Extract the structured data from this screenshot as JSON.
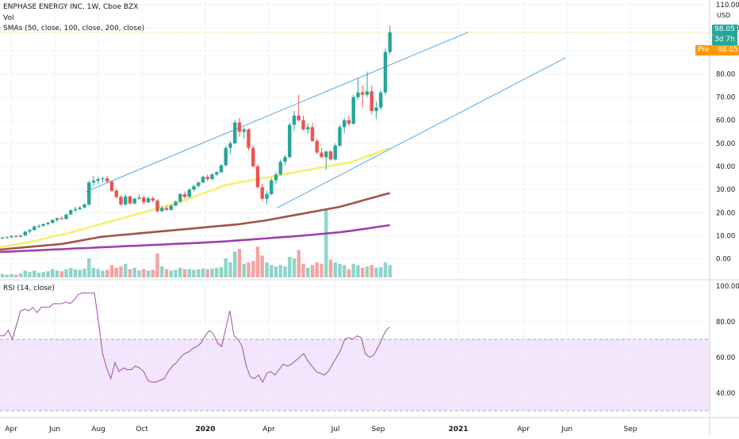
{
  "header": {
    "symbol_line": "ENPHASE ENERGY INC, 1W, Cboe BZX",
    "vol_label": "Vol",
    "sma_label": "SMAs (50, close, 100, close, 200, close)",
    "rsi_label": "RSI (14, close)",
    "currency": "USD"
  },
  "badges": {
    "last_price": "98.05",
    "countdown": "3d 7h",
    "pre_label": "Pre",
    "pre_price": "98.05"
  },
  "colors": {
    "up": "#26a69a",
    "down": "#ef5350",
    "vol_up": "#8fd3c9",
    "vol_down": "#f5a3a1",
    "sma50": "#f5f06a",
    "sma100": "#a1534a",
    "sma200": "#9c3fb0",
    "channel": "#4fa8e8",
    "rsi_line": "#9c4fa8",
    "rsi_band": "#f3e5fb",
    "price_badge": "#26a69a",
    "pre_badge": "#ff9800"
  },
  "chart_data": [
    {
      "type": "candlestick",
      "ylim": [
        -8,
        112
      ],
      "y_ticks": [
        "0.00",
        "10.00",
        "20.00",
        "30.00",
        "40.00",
        "50.00",
        "60.00",
        "70.00",
        "80.00",
        "90.00",
        "100.00",
        "110.00"
      ],
      "x_labels": [
        "Apr",
        "Jun",
        "Aug",
        "Oct",
        "2020",
        "Apr",
        "Jul",
        "Sep",
        "2021",
        "Apr",
        "Jun",
        "Sep"
      ],
      "candles_ohlc": [
        [
          9,
          9.6,
          8.6,
          9.2
        ],
        [
          9.2,
          9.7,
          8.8,
          9.4
        ],
        [
          9.4,
          10.2,
          9,
          9.9
        ],
        [
          9.9,
          10.3,
          9.2,
          9.6
        ],
        [
          9.6,
          10.4,
          9.3,
          10.1
        ],
        [
          10.1,
          12,
          10,
          11.8
        ],
        [
          11.8,
          13,
          11.2,
          12.5
        ],
        [
          12.5,
          14.5,
          12.2,
          14
        ],
        [
          14,
          15,
          13.2,
          14.3
        ],
        [
          14.3,
          15.4,
          13.8,
          15
        ],
        [
          15,
          16,
          14.5,
          15.6
        ],
        [
          15.6,
          17.2,
          15.2,
          16.8
        ],
        [
          16.8,
          18,
          16,
          17.6
        ],
        [
          17.6,
          18.5,
          16.8,
          17.2
        ],
        [
          17.2,
          19.5,
          17,
          19.2
        ],
        [
          19.2,
          21.5,
          19,
          21
        ],
        [
          21,
          22.5,
          20.2,
          21.6
        ],
        [
          21.6,
          22.8,
          21,
          22.2
        ],
        [
          22.2,
          24,
          21.8,
          23.5
        ],
        [
          23.5,
          34,
          23,
          33
        ],
        [
          33,
          36,
          31.5,
          33.8
        ],
        [
          33.8,
          35.5,
          32.2,
          34.5
        ],
        [
          34.5,
          35.5,
          33,
          34.8
        ],
        [
          34.8,
          36,
          33,
          33.5
        ],
        [
          33.5,
          34,
          29,
          29.5
        ],
        [
          29.5,
          30.5,
          26,
          26.8
        ],
        [
          26.8,
          27.5,
          23,
          23.5
        ],
        [
          23.5,
          28,
          23,
          27
        ],
        [
          27,
          27.5,
          23.5,
          24
        ],
        [
          24,
          26.5,
          23.5,
          26
        ],
        [
          26,
          28,
          25.5,
          26.5
        ],
        [
          26.5,
          27.5,
          23.5,
          24.5
        ],
        [
          24.5,
          27,
          24,
          26.2
        ],
        [
          26.2,
          27,
          24.5,
          25.2
        ],
        [
          25.2,
          25.8,
          20,
          20.6
        ],
        [
          20.6,
          22.8,
          20.3,
          22
        ],
        [
          22,
          23,
          20.8,
          21.2
        ],
        [
          21.2,
          23.5,
          21,
          23
        ],
        [
          23,
          25.2,
          22.8,
          24.8
        ],
        [
          24.8,
          28.5,
          24.2,
          28
        ],
        [
          28,
          29.2,
          26,
          26.8
        ],
        [
          26.8,
          30.5,
          26.5,
          30
        ],
        [
          30,
          32,
          29.2,
          31.5
        ],
        [
          31.5,
          33.5,
          31,
          33
        ],
        [
          33,
          36,
          32.8,
          35.5
        ],
        [
          35.5,
          36.5,
          33.6,
          34.5
        ],
        [
          34.5,
          37,
          34,
          36.5
        ],
        [
          36.5,
          38,
          35.8,
          37.5
        ],
        [
          37.5,
          41,
          37,
          40.5
        ],
        [
          40.5,
          49,
          40,
          48
        ],
        [
          48,
          51,
          45.5,
          50
        ],
        [
          50,
          60,
          49.5,
          59
        ],
        [
          59,
          61,
          53,
          55
        ],
        [
          55,
          57,
          52,
          56
        ],
        [
          56,
          56.5,
          47,
          48
        ],
        [
          48,
          49,
          39.5,
          40
        ],
        [
          40,
          41,
          30.5,
          31
        ],
        [
          31,
          32.5,
          25,
          26
        ],
        [
          26,
          29.5,
          23.5,
          28
        ],
        [
          28,
          35,
          27.5,
          34
        ],
        [
          34,
          37.5,
          32.5,
          36.5
        ],
        [
          36.5,
          43,
          36,
          42
        ],
        [
          42,
          45,
          40.5,
          44
        ],
        [
          44,
          59,
          43.5,
          58
        ],
        [
          58,
          64,
          55.5,
          62
        ],
        [
          62,
          71,
          59.5,
          60
        ],
        [
          60,
          62,
          55.5,
          56
        ],
        [
          56,
          58.5,
          54,
          57
        ],
        [
          57,
          59,
          50.5,
          51
        ],
        [
          51,
          52,
          45.5,
          46
        ],
        [
          46,
          48,
          43.5,
          44
        ],
        [
          44,
          45.5,
          38.5,
          46.5
        ],
        [
          46.5,
          47,
          42.5,
          43
        ],
        [
          43,
          50,
          42.5,
          49
        ],
        [
          49,
          58,
          48.5,
          57
        ],
        [
          57,
          61,
          54.5,
          60
        ],
        [
          60,
          62,
          57.5,
          58.5
        ],
        [
          58.5,
          71,
          58,
          70
        ],
        [
          70,
          78,
          69,
          72
        ],
        [
          72,
          75,
          65.5,
          71
        ],
        [
          71,
          81,
          70,
          72.5
        ],
        [
          72.5,
          75,
          62.5,
          64
        ],
        [
          64,
          68,
          60.5,
          65.5
        ],
        [
          65.5,
          73,
          64.5,
          72
        ],
        [
          72,
          91,
          71,
          89.5
        ],
        [
          89.5,
          101,
          88.5,
          98.05
        ]
      ],
      "volume_relative": [
        0.05,
        0.04,
        0.05,
        0.04,
        0.06,
        0.1,
        0.08,
        0.1,
        0.07,
        0.08,
        0.09,
        0.12,
        0.1,
        0.09,
        0.12,
        0.14,
        0.12,
        0.11,
        0.13,
        0.28,
        0.14,
        0.12,
        0.1,
        0.11,
        0.18,
        0.14,
        0.16,
        0.2,
        0.12,
        0.14,
        0.1,
        0.12,
        0.1,
        0.11,
        0.35,
        0.16,
        0.12,
        0.1,
        0.11,
        0.14,
        0.12,
        0.12,
        0.11,
        0.12,
        0.13,
        0.12,
        0.13,
        0.14,
        0.15,
        0.28,
        0.22,
        0.38,
        0.42,
        0.2,
        0.22,
        0.24,
        0.45,
        0.32,
        0.22,
        0.18,
        0.16,
        0.18,
        0.16,
        0.3,
        0.28,
        0.4,
        0.2,
        0.14,
        0.18,
        0.22,
        0.2,
        1.0,
        0.26,
        0.22,
        0.2,
        0.18,
        0.12,
        0.2,
        0.18,
        0.14,
        0.16,
        0.18,
        0.14,
        0.15,
        0.22,
        0.18
      ],
      "sma50": [
        5,
        6,
        7,
        8,
        9.5,
        10.5,
        12,
        13.5,
        15,
        16.5,
        18,
        19.5,
        21,
        22.5,
        24,
        26,
        28,
        30,
        32,
        33,
        34,
        35,
        36,
        37,
        38,
        39,
        40,
        41,
        42,
        44,
        46,
        48
      ],
      "sma100": [
        4,
        4.5,
        5,
        5.5,
        6,
        6.5,
        7.5,
        8.5,
        9.5,
        10,
        10.5,
        11,
        11.5,
        12,
        12.5,
        13,
        13.5,
        14,
        14.5,
        15,
        15.8,
        16.5,
        17.5,
        18.5,
        19.5,
        20.5,
        21.5,
        22.5,
        24,
        25.5,
        27,
        28.5
      ],
      "sma200": [
        3,
        3.2,
        3.5,
        3.7,
        4,
        4.2,
        4.5,
        4.7,
        5,
        5.2,
        5.5,
        5.7,
        6,
        6.2,
        6.5,
        6.7,
        7,
        7.3,
        7.6,
        8,
        8.4,
        8.8,
        9.2,
        9.6,
        10,
        10.5,
        11,
        11.5,
        12.2,
        13,
        13.8,
        14.6
      ],
      "channel_upper": [
        [
          0.22,
          29
        ],
        [
          1.2,
          98
        ]
      ],
      "channel_lower": [
        [
          0.71,
          22
        ],
        [
          1.45,
          87
        ]
      ],
      "last_price": 98.05
    },
    {
      "type": "line",
      "title": "RSI (14, close)",
      "ylim": [
        27,
        103
      ],
      "y_ticks": [
        "40.00",
        "60.00",
        "80.00",
        "100.00"
      ],
      "band": [
        30,
        70
      ],
      "values": [
        72,
        72,
        75,
        70,
        78,
        86,
        87,
        86,
        88,
        85,
        88,
        88,
        88,
        90,
        90,
        90,
        91,
        90,
        92,
        95,
        96,
        96,
        96,
        96,
        80,
        62,
        54,
        48,
        57,
        52,
        54,
        53,
        53,
        55,
        54,
        52,
        47,
        46,
        46,
        47,
        48,
        52,
        55,
        57,
        60,
        62,
        63,
        65,
        66,
        68,
        72,
        75,
        73,
        68,
        66,
        76,
        86,
        72,
        70,
        66,
        55,
        49,
        48,
        50,
        46,
        51,
        52,
        50,
        53,
        56,
        55,
        56,
        58,
        60,
        62,
        58,
        55,
        52,
        51,
        50,
        52,
        56,
        60,
        64,
        70,
        71,
        70,
        72,
        71,
        62,
        60,
        61,
        65,
        70,
        75,
        77
      ]
    }
  ]
}
